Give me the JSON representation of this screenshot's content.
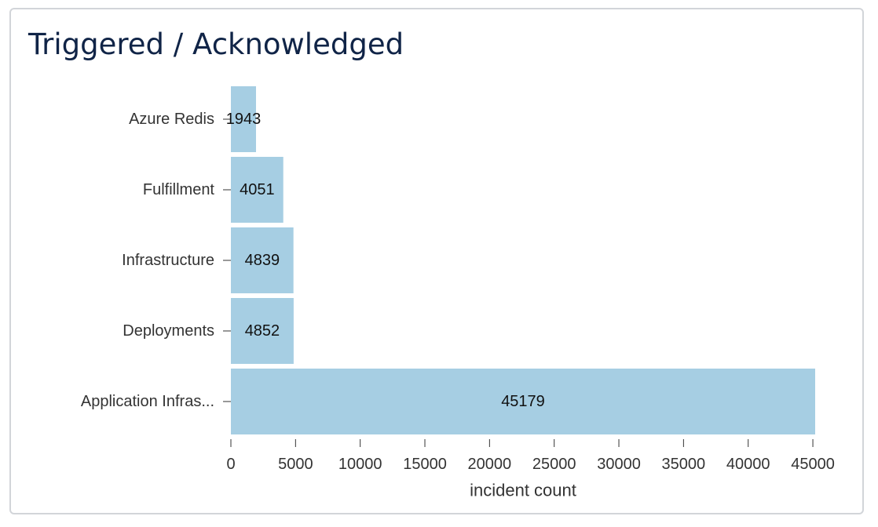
{
  "card": {
    "title": "Triggered / Acknowledged"
  },
  "colors": {
    "bar": "#a6cee3",
    "title": "#102447",
    "axis_text": "#333333",
    "card_border": "#d2d5d9"
  },
  "chart_data": {
    "type": "bar",
    "orientation": "horizontal",
    "title": "Triggered / Acknowledged",
    "categories": [
      "Azure Redis",
      "Fulfillment",
      "Infrastructure",
      "Deployments",
      "Application Infras..."
    ],
    "values": [
      1943,
      4051,
      4839,
      4852,
      45179
    ],
    "data_labels": [
      "1943",
      "4051",
      "4839",
      "4852",
      "45179"
    ],
    "xlabel": "incident count",
    "ylabel": "",
    "xlim": [
      0,
      45179
    ],
    "xticks": [
      0,
      5000,
      10000,
      15000,
      20000,
      25000,
      30000,
      35000,
      40000,
      45000
    ],
    "xtick_labels": [
      "0",
      "5000",
      "10000",
      "15000",
      "20000",
      "25000",
      "30000",
      "35000",
      "40000",
      "45000"
    ],
    "grid": false,
    "legend": "none"
  }
}
